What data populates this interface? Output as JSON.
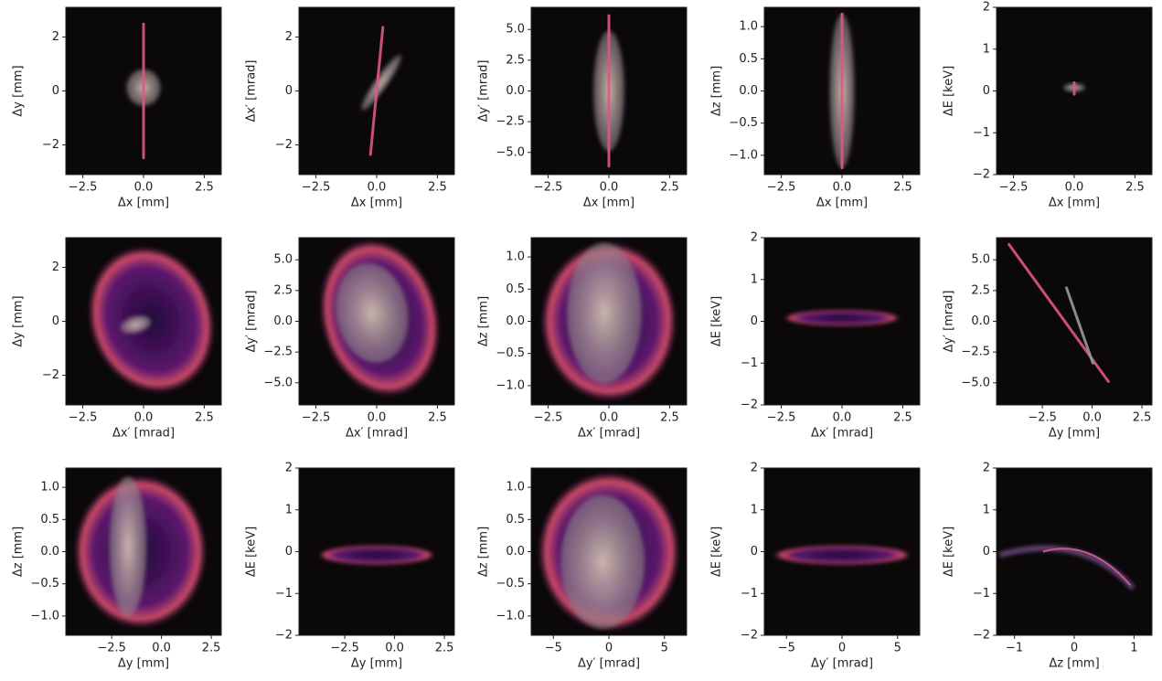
{
  "chart_data": [
    {
      "type": "density",
      "xlabel": "Δx [mm]",
      "ylabel": "Δy [mm]",
      "xlim": [
        -3.2,
        3.2
      ],
      "ylim": [
        -3.1,
        3.1
      ],
      "xticks": [
        {
          "value": -2.5,
          "label": "−2.5"
        },
        {
          "value": 0,
          "label": "0.0"
        },
        2.5
      ],
      "yticks": [
        {
          "value": -2,
          "label": "−2"
        },
        0,
        2
      ]
    },
    {
      "type": "density",
      "xlabel": "Δx [mm]",
      "ylabel": "Δx′ [mrad]",
      "xlim": [
        -3.2,
        3.2
      ],
      "ylim": [
        -3.1,
        3.1
      ],
      "xticks": [
        {
          "value": -2.5,
          "label": "−2.5"
        },
        {
          "value": 0,
          "label": "0.0"
        },
        2.5
      ],
      "yticks": [
        {
          "value": -2,
          "label": "−2"
        },
        0,
        2
      ]
    },
    {
      "type": "density",
      "xlabel": "Δx [mm]",
      "ylabel": "Δy′ [mrad]",
      "xlim": [
        -3.2,
        3.2
      ],
      "ylim": [
        -6.8,
        6.8
      ],
      "xticks": [
        {
          "value": -2.5,
          "label": "−2.5"
        },
        {
          "value": 0,
          "label": "0.0"
        },
        2.5
      ],
      "yticks": [
        {
          "value": -5,
          "label": "−5.0"
        },
        {
          "value": -2.5,
          "label": "−2.5"
        },
        {
          "value": 0,
          "label": "0.0"
        },
        2.5,
        {
          "value": 5,
          "label": "5.0"
        }
      ]
    },
    {
      "type": "density",
      "xlabel": "Δx [mm]",
      "ylabel": "Δz [mm]",
      "xlim": [
        -3.2,
        3.2
      ],
      "ylim": [
        -1.3,
        1.3
      ],
      "xticks": [
        {
          "value": -2.5,
          "label": "−2.5"
        },
        {
          "value": 0,
          "label": "0.0"
        },
        2.5
      ],
      "yticks": [
        {
          "value": -1,
          "label": "−1.0"
        },
        {
          "value": -0.5,
          "label": "−0.5"
        },
        {
          "value": 0,
          "label": "0.0"
        },
        0.5,
        {
          "value": 1,
          "label": "1.0"
        }
      ]
    },
    {
      "type": "density",
      "xlabel": "Δx [mm]",
      "ylabel": "ΔE [keV]",
      "xlim": [
        -3.2,
        3.2
      ],
      "ylim": [
        -2,
        2
      ],
      "xticks": [
        {
          "value": -2.5,
          "label": "−2.5"
        },
        {
          "value": 0,
          "label": "0.0"
        },
        2.5
      ],
      "yticks": [
        {
          "value": -2,
          "label": "−2"
        },
        {
          "value": -1,
          "label": "−1"
        },
        0,
        1,
        2
      ]
    },
    {
      "type": "density",
      "xlabel": "Δx′ [mrad]",
      "ylabel": "Δy [mm]",
      "xlim": [
        -3.2,
        3.2
      ],
      "ylim": [
        -3.1,
        3.1
      ],
      "xticks": [
        {
          "value": -2.5,
          "label": "−2.5"
        },
        {
          "value": 0,
          "label": "0.0"
        },
        2.5
      ],
      "yticks": [
        {
          "value": -2,
          "label": "−2"
        },
        0,
        2
      ]
    },
    {
      "type": "density",
      "xlabel": "Δx′ [mrad]",
      "ylabel": "Δy′ [mrad]",
      "xlim": [
        -3.2,
        3.2
      ],
      "ylim": [
        -6.8,
        6.8
      ],
      "xticks": [
        {
          "value": -2.5,
          "label": "−2.5"
        },
        {
          "value": 0,
          "label": "0.0"
        },
        2.5
      ],
      "yticks": [
        {
          "value": -5,
          "label": "−5.0"
        },
        {
          "value": -2.5,
          "label": "−2.5"
        },
        {
          "value": 0,
          "label": "0.0"
        },
        2.5,
        {
          "value": 5,
          "label": "5.0"
        }
      ]
    },
    {
      "type": "density",
      "xlabel": "Δx′ [mrad]",
      "ylabel": "Δz [mm]",
      "xlim": [
        -3.2,
        3.2
      ],
      "ylim": [
        -1.3,
        1.3
      ],
      "xticks": [
        {
          "value": -2.5,
          "label": "−2.5"
        },
        {
          "value": 0,
          "label": "0.0"
        },
        2.5
      ],
      "yticks": [
        {
          "value": -1,
          "label": "−1.0"
        },
        {
          "value": -0.5,
          "label": "−0.5"
        },
        {
          "value": 0,
          "label": "0.0"
        },
        0.5,
        {
          "value": 1,
          "label": "1.0"
        }
      ]
    },
    {
      "type": "density",
      "xlabel": "Δx′ [mrad]",
      "ylabel": "ΔE [keV]",
      "xlim": [
        -3.2,
        3.2
      ],
      "ylim": [
        -2,
        2
      ],
      "xticks": [
        {
          "value": -2.5,
          "label": "−2.5"
        },
        {
          "value": 0,
          "label": "0.0"
        },
        2.5
      ],
      "yticks": [
        {
          "value": -2,
          "label": "−2"
        },
        {
          "value": -1,
          "label": "−1"
        },
        0,
        1,
        2
      ]
    },
    {
      "type": "density",
      "xlabel": "Δy [mm]",
      "ylabel": "Δy′ [mrad]",
      "xlim": [
        -4.8,
        3.0
      ],
      "ylim": [
        -6.8,
        6.8
      ],
      "xticks": [
        {
          "value": -2.5,
          "label": "−2.5"
        },
        {
          "value": 0,
          "label": "0.0"
        },
        2.5
      ],
      "yticks": [
        {
          "value": -5,
          "label": "−5.0"
        },
        {
          "value": -2.5,
          "label": "−2.5"
        },
        {
          "value": 0,
          "label": "0.0"
        },
        2.5,
        {
          "value": 5,
          "label": "5.0"
        }
      ]
    },
    {
      "type": "density",
      "xlabel": "Δy [mm]",
      "ylabel": "Δz [mm]",
      "xlim": [
        -4.8,
        3.0
      ],
      "ylim": [
        -1.3,
        1.3
      ],
      "xticks": [
        {
          "value": -2.5,
          "label": "−2.5"
        },
        {
          "value": 0,
          "label": "0.0"
        },
        2.5
      ],
      "yticks": [
        {
          "value": -1,
          "label": "−1.0"
        },
        {
          "value": -0.5,
          "label": "−0.5"
        },
        {
          "value": 0,
          "label": "0.0"
        },
        0.5,
        {
          "value": 1,
          "label": "1.0"
        }
      ]
    },
    {
      "type": "density",
      "xlabel": "Δy [mm]",
      "ylabel": "ΔE [keV]",
      "xlim": [
        -4.8,
        3.0
      ],
      "ylim": [
        -2,
        2
      ],
      "xticks": [
        {
          "value": -2.5,
          "label": "−2.5"
        },
        {
          "value": 0,
          "label": "0.0"
        },
        2.5
      ],
      "yticks": [
        {
          "value": -2,
          "label": "−2"
        },
        {
          "value": -1,
          "label": "−1"
        },
        0,
        1,
        2
      ]
    },
    {
      "type": "density",
      "xlabel": "Δy′ [mrad]",
      "ylabel": "Δz [mm]",
      "xlim": [
        -7,
        7
      ],
      "ylim": [
        -1.3,
        1.3
      ],
      "xticks": [
        {
          "value": -5,
          "label": "−5"
        },
        0,
        5
      ],
      "yticks": [
        {
          "value": -1,
          "label": "−1.0"
        },
        {
          "value": -0.5,
          "label": "−0.5"
        },
        {
          "value": 0,
          "label": "0.0"
        },
        0.5,
        {
          "value": 1,
          "label": "1.0"
        }
      ]
    },
    {
      "type": "density",
      "xlabel": "Δy′ [mrad]",
      "ylabel": "ΔE [keV]",
      "xlim": [
        -7,
        7
      ],
      "ylim": [
        -2,
        2
      ],
      "xticks": [
        {
          "value": -5,
          "label": "−5"
        },
        0,
        5
      ],
      "yticks": [
        {
          "value": -2,
          "label": "−2"
        },
        {
          "value": -1,
          "label": "−1"
        },
        0,
        1,
        2
      ]
    },
    {
      "type": "density",
      "xlabel": "Δz [mm]",
      "ylabel": "ΔE [keV]",
      "xlim": [
        -1.3,
        1.3
      ],
      "ylim": [
        -2,
        2
      ],
      "xticks": [
        {
          "value": -1,
          "label": "−1"
        },
        0,
        1
      ],
      "yticks": [
        {
          "value": -2,
          "label": "−2"
        },
        {
          "value": -1,
          "label": "−1"
        },
        0,
        1,
        2
      ]
    }
  ]
}
